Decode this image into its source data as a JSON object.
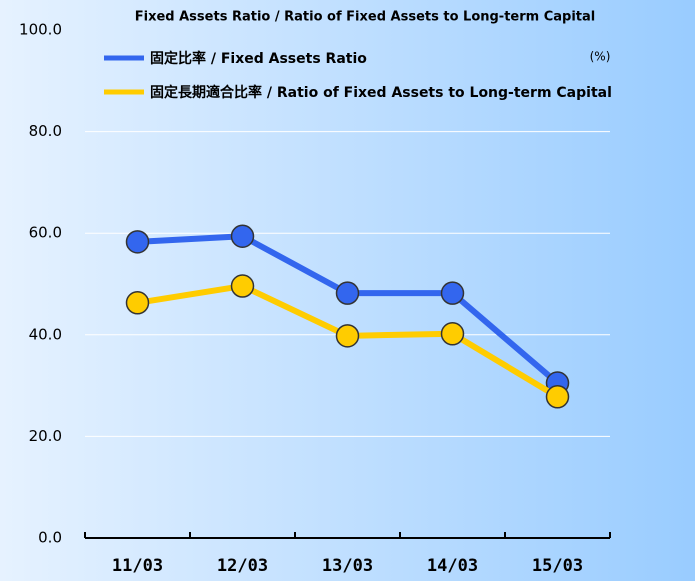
{
  "chart_data": {
    "type": "line",
    "title": "Fixed Assets Ratio / Ratio of Fixed Assets to Long-term Capital",
    "unit_label": "(%)",
    "categories": [
      "11/03",
      "12/03",
      "13/03",
      "14/03",
      "15/03"
    ],
    "series": [
      {
        "name": "固定比率 / Fixed Assets Ratio",
        "color": "#3366ee",
        "values": [
          58.3,
          59.4,
          48.2,
          48.2,
          30.5
        ]
      },
      {
        "name": "固定長期適合比率 / Ratio of Fixed Assets to Long-term Capital",
        "color": "#ffcc00",
        "values": [
          46.3,
          49.6,
          39.8,
          40.2,
          27.8
        ]
      }
    ],
    "ylim": [
      0,
      100
    ],
    "yticks": [
      {
        "value": 0,
        "label": "0.0"
      },
      {
        "value": 20,
        "label": "20.0"
      },
      {
        "value": 40,
        "label": "40.0"
      },
      {
        "value": 60,
        "label": "60.0"
      },
      {
        "value": 80,
        "label": "80.0"
      },
      {
        "value": 100,
        "label": "100.0"
      }
    ],
    "grid": true
  }
}
